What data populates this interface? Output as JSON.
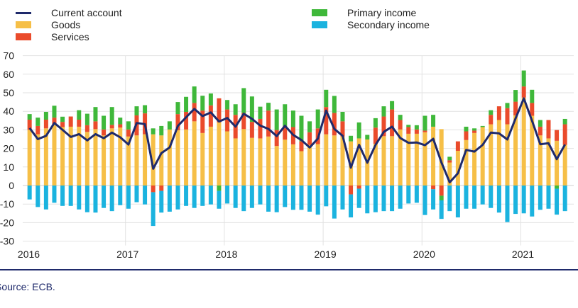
{
  "chart_data": {
    "type": "bar",
    "stacked": true,
    "title": "",
    "xlabel": "",
    "ylabel": "",
    "ylim": [
      -30,
      70
    ],
    "yticks": [
      70,
      60,
      50,
      40,
      30,
      20,
      10,
      0,
      -10,
      -20,
      -30
    ],
    "xtick_labels": [
      "2016",
      "2017",
      "2018",
      "2019",
      "2020",
      "2021"
    ],
    "x_start": "2016-01",
    "x_end": "2021-06",
    "frequency": "monthly",
    "grid": true,
    "legend_position": "top",
    "colors": {
      "current_account": "#1f2a6b",
      "goods": "#f6bf47",
      "services": "#ea4b2b",
      "primary_income": "#3fb83a",
      "secondary_income": "#1bb3df"
    },
    "legend": {
      "current_account": "Current account",
      "goods": "Goods",
      "services": "Services",
      "primary_income": "Primary income",
      "secondary_income": "Secondary income"
    },
    "series": [
      {
        "key": "goods",
        "name": "Goods",
        "kind": "bar",
        "values": [
          30,
          27.6,
          30.8,
          33,
          31.5,
          31.7,
          31.7,
          28.9,
          30.4,
          27,
          30.8,
          31.2,
          26.4,
          27,
          27.6,
          27.6,
          27,
          30.2,
          29.8,
          30.2,
          34.6,
          28.3,
          31.7,
          34,
          29.2,
          25.4,
          30.4,
          25.7,
          25.4,
          26.4,
          21.3,
          24.7,
          22.2,
          18.5,
          21.9,
          22.3,
          27.6,
          27,
          26.4,
          23.8,
          25.4,
          24.8,
          22.5,
          26.6,
          26.6,
          30.2,
          27.9,
          27.9,
          28.7,
          31.7,
          30.4,
          12.4,
          18.7,
          24.5,
          28.3,
          31.5,
          33,
          35.3,
          33,
          37.8,
          47.4,
          37.6,
          27,
          25.4,
          24.1,
          21.9
        ]
      },
      {
        "key": "services",
        "name": "Services",
        "kind": "bar",
        "values": [
          5.5,
          4.5,
          4.7,
          3.6,
          2.8,
          5.5,
          3.8,
          3.6,
          4.2,
          3.2,
          1.9,
          1.8,
          3.8,
          10.8,
          11.3,
          -3.6,
          -2.9,
          0,
          8.7,
          9.5,
          9.9,
          12.1,
          11.5,
          13,
          11.8,
          12.7,
          8.7,
          8.6,
          10.5,
          14,
          8.6,
          7.4,
          9.3,
          5.3,
          6.8,
          8.5,
          14.7,
          12.1,
          8.2,
          -4.8,
          -1.7,
          0,
          8.7,
          10.6,
          14.4,
          5.1,
          3.6,
          2.3,
          0.9,
          -2,
          -5.5,
          1.2,
          5.1,
          4.7,
          1.3,
          0,
          5.1,
          7.4,
          8.7,
          7.4,
          6,
          6.9,
          4.7,
          9.9,
          5.8,
          11.1
        ]
      },
      {
        "key": "primary_income",
        "name": "Primary income",
        "kind": "bar",
        "values": [
          3,
          4.5,
          4.2,
          6.4,
          2.8,
          0,
          5.1,
          6.2,
          7.7,
          7.4,
          9.6,
          3.6,
          4.4,
          4.9,
          4.4,
          3.2,
          5.1,
          4.4,
          6.5,
          8.1,
          8.9,
          8,
          6.4,
          -2.9,
          5.1,
          5.7,
          13.4,
          13.7,
          6.6,
          4.2,
          11.1,
          11.7,
          8.9,
          13.8,
          5.9,
          10.2,
          9.3,
          9.2,
          5.1,
          3,
          8.6,
          2.5,
          5.1,
          5.5,
          4.5,
          2.8,
          1.2,
          2.3,
          8,
          6.4,
          -2.5,
          1.9,
          0,
          2.5,
          1.2,
          0.6,
          2.5,
          0,
          2.8,
          6.3,
          8.6,
          7.1,
          3.6,
          0,
          -1.7,
          2.9
        ]
      },
      {
        "key": "secondary_income",
        "name": "Secondary income",
        "kind": "bar",
        "values": [
          -7.5,
          -11.6,
          -12.9,
          -9.3,
          -11,
          -11,
          -12.9,
          -14.4,
          -14.6,
          -12.1,
          -13.8,
          -10.6,
          -12.5,
          -9,
          -10.2,
          -18.2,
          -11.7,
          -14.1,
          -12.9,
          -11,
          -12.1,
          -11,
          -10.2,
          -9.6,
          -9.7,
          -12.1,
          -13.8,
          -12.1,
          -10.2,
          -14.1,
          -14.4,
          -11.6,
          -13.1,
          -13.1,
          -14.1,
          -15.7,
          -11.2,
          -17.8,
          -12.9,
          -12.4,
          -10.4,
          -15,
          -14.4,
          -13.8,
          -13.8,
          -12.5,
          -9.7,
          -9.3,
          -15.9,
          -10.9,
          -10,
          -13.8,
          -17.2,
          -12.5,
          -12.5,
          -10.2,
          -12.1,
          -14.6,
          -19.7,
          -15.3,
          -15,
          -16.7,
          -13.1,
          -12.5,
          -14,
          -13.8
        ]
      },
      {
        "key": "current_account",
        "name": "Current account",
        "kind": "line",
        "values": [
          31,
          25,
          26.8,
          33.7,
          30,
          26.2,
          27.7,
          24.3,
          27.7,
          25.5,
          28.5,
          26,
          22.1,
          33.7,
          33.1,
          9,
          17.5,
          20.5,
          32.1,
          36.8,
          41.3,
          37.4,
          39.4,
          34.5,
          36.4,
          31.7,
          38.7,
          35.9,
          32.3,
          30.5,
          26.6,
          32.2,
          27.3,
          24.5,
          20.5,
          25.3,
          40.4,
          30.5,
          26.8,
          9.6,
          21.9,
          12.3,
          21.9,
          28.9,
          31.7,
          25.6,
          23,
          23.2,
          21.7,
          25.2,
          12.4,
          1.7,
          6.6,
          19.2,
          18.3,
          21.9,
          28.5,
          28.1,
          24.8,
          36.2,
          47,
          34.9,
          22.2,
          22.8,
          14.2,
          22.1
        ]
      }
    ]
  },
  "footer": {
    "source": "Source: ECB."
  }
}
